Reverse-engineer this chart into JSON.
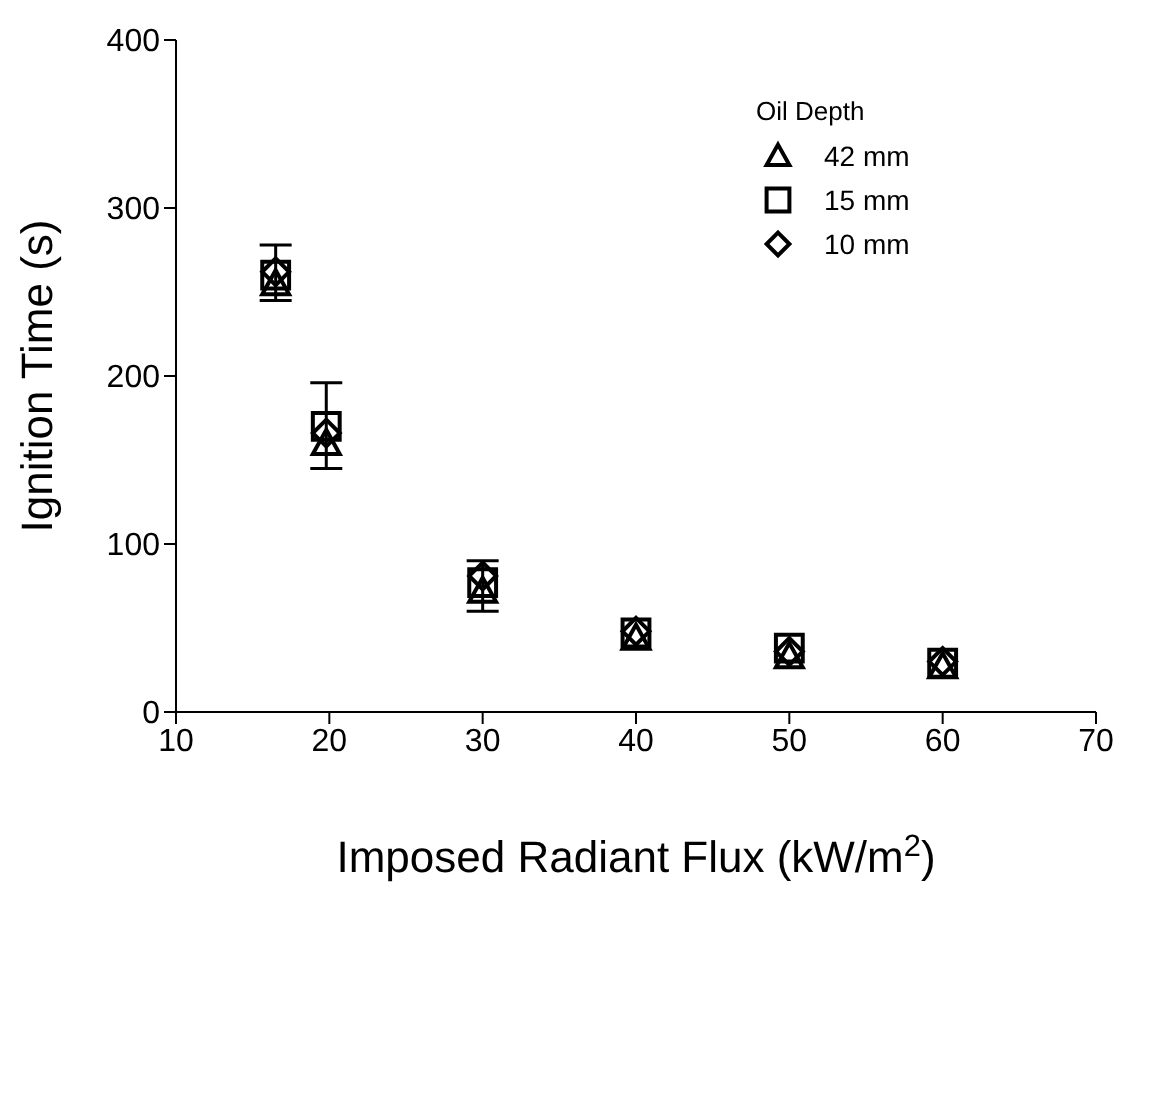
{
  "chart_data": {
    "type": "scatter",
    "xlabel": "Imposed Radiant Flux (kW/m$^{2}$)",
    "ylabel": "Ignition Time (s)",
    "legend_title": "Oil Depth",
    "legend": "top right",
    "grid": false,
    "xlim": [
      10,
      70
    ],
    "xticks": [
      10,
      20,
      30,
      40,
      50,
      60,
      70
    ],
    "ylim": [
      0,
      400
    ],
    "yticks": [
      0,
      100,
      200,
      300,
      400
    ],
    "series": [
      {
        "name": "42 mm",
        "color": "#000000",
        "marker": "triangle",
        "x": [
          16.5,
          19.8,
          30,
          40,
          50,
          60
        ],
        "values": [
          255,
          160,
          72,
          44,
          33,
          27
        ]
      },
      {
        "name": "15 mm",
        "color": "#000000",
        "marker": "square",
        "x": [
          16.5,
          19.8,
          30,
          40,
          50,
          60
        ],
        "values": [
          260,
          170,
          77,
          47,
          38,
          29
        ],
        "errors": [
          [
            245,
            278
          ],
          [
            145,
            196
          ],
          [
            60,
            90
          ],
          null,
          null,
          null
        ]
      },
      {
        "name": "10 mm",
        "color": "#000000",
        "marker": "diamond",
        "x": [
          16.5,
          19.8,
          30,
          40,
          50,
          60
        ],
        "values": [
          262,
          166,
          81,
          48,
          36,
          30
        ]
      }
    ]
  }
}
